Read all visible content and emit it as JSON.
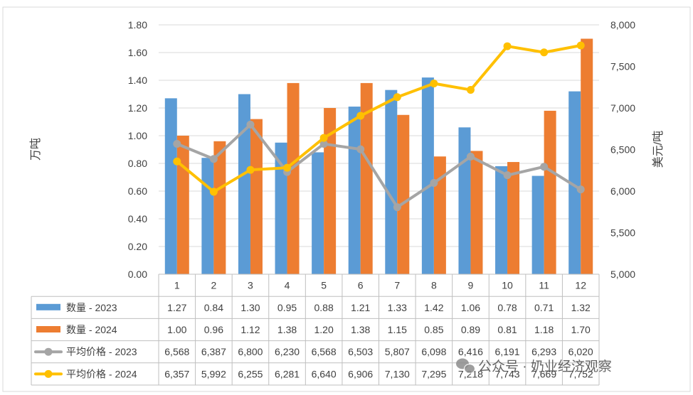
{
  "chart_data": {
    "type": "bar+line",
    "categories": [
      "1",
      "2",
      "3",
      "4",
      "5",
      "6",
      "7",
      "8",
      "9",
      "10",
      "11",
      "12"
    ],
    "y_left_label": "万吨",
    "y_right_label": "美元/吨",
    "y_left_ticks": [
      "0.00",
      "0.20",
      "0.40",
      "0.60",
      "0.80",
      "1.00",
      "1.20",
      "1.40",
      "1.60",
      "1.80"
    ],
    "y_right_ticks": [
      "5,000",
      "5,500",
      "6,000",
      "6,500",
      "7,000",
      "7,500",
      "8,000"
    ],
    "ylim_left": [
      0,
      1.8
    ],
    "ylim_right": [
      5000,
      8000
    ],
    "series": [
      {
        "name": "数量 - 2023",
        "kind": "bar",
        "axis": "left",
        "color": "#5b9bd5",
        "values": [
          1.27,
          0.84,
          1.3,
          0.95,
          0.88,
          1.21,
          1.33,
          1.42,
          1.06,
          0.78,
          0.71,
          1.32
        ],
        "labels": [
          "1.27",
          "0.84",
          "1.30",
          "0.95",
          "0.88",
          "1.21",
          "1.33",
          "1.42",
          "1.06",
          "0.78",
          "0.71",
          "1.32"
        ]
      },
      {
        "name": "数量 - 2024",
        "kind": "bar",
        "axis": "left",
        "color": "#ed7d31",
        "values": [
          1.0,
          0.96,
          1.12,
          1.38,
          1.2,
          1.38,
          1.15,
          0.85,
          0.89,
          0.81,
          1.18,
          1.7
        ],
        "labels": [
          "1.00",
          "0.96",
          "1.12",
          "1.38",
          "1.20",
          "1.38",
          "1.15",
          "0.85",
          "0.89",
          "0.81",
          "1.18",
          "1.70"
        ]
      },
      {
        "name": "平均价格 - 2023",
        "kind": "line",
        "axis": "right",
        "color": "#a5a5a5",
        "values": [
          6568,
          6387,
          6800,
          6230,
          6568,
          6503,
          5807,
          6098,
          6416,
          6191,
          6293,
          6020
        ],
        "labels": [
          "6,568",
          "6,387",
          "6,800",
          "6,230",
          "6,568",
          "6,503",
          "5,807",
          "6,098",
          "6,416",
          "6,191",
          "6,293",
          "6,020"
        ]
      },
      {
        "name": "平均价格 - 2024",
        "kind": "line",
        "axis": "right",
        "color": "#ffc000",
        "values": [
          6357,
          5992,
          6255,
          6281,
          6640,
          6906,
          7130,
          7295,
          7218,
          7743,
          7669,
          7752
        ],
        "labels": [
          "6,357",
          "5,992",
          "6,255",
          "6,281",
          "6,640",
          "6,906",
          "7,130",
          "7,295",
          "7,218",
          "7,743",
          "7,669",
          "7,752"
        ]
      }
    ],
    "watermark": "公众号 · 奶业经济观察"
  }
}
